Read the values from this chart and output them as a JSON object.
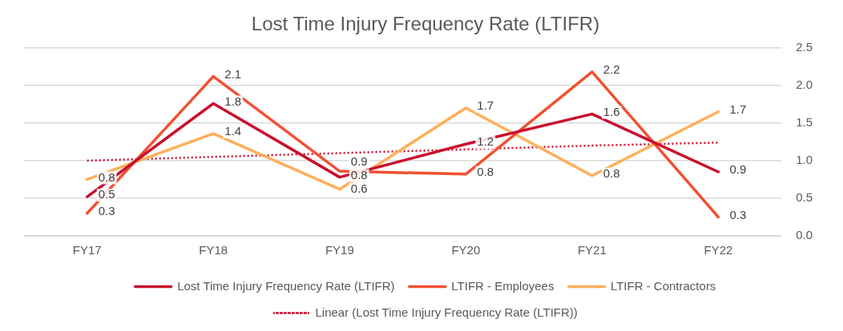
{
  "chart_data": {
    "type": "line",
    "title": "Lost Time Injury Frequency Rate (LTIFR)",
    "categories": [
      "FY17",
      "FY18",
      "FY19",
      "FY20",
      "FY21",
      "FY22"
    ],
    "series": [
      {
        "name": "Lost Time Injury Frequency Rate (LTIFR)",
        "color": "#c8102e",
        "values": [
          0.52,
          1.76,
          0.78,
          1.22,
          1.62,
          0.85
        ],
        "value_labels": [
          "0.5",
          "1.8",
          "0.8",
          "1.2",
          "1.6",
          "0.9"
        ]
      },
      {
        "name": "LTIFR - Employees",
        "color": "#f05132",
        "values": [
          0.3,
          2.12,
          0.86,
          0.82,
          2.18,
          0.25
        ],
        "value_labels": [
          "0.3",
          "2.1",
          "0.9",
          "0.8",
          "2.2",
          "0.3"
        ]
      },
      {
        "name": "LTIFR - Contractors",
        "color": "#ffaf5a",
        "values": [
          0.75,
          1.36,
          0.62,
          1.7,
          0.8,
          1.65
        ],
        "value_labels": [
          "0.8",
          "1.4",
          "0.6",
          "1.7",
          "0.8",
          "1.7"
        ]
      },
      {
        "name": "Linear (Lost Time Injury Frequency Rate (LTIFR))",
        "color": "#c8102e",
        "values": [
          1.0,
          1.05,
          1.1,
          1.15,
          1.2,
          1.24
        ],
        "line_style": "dotted"
      }
    ],
    "ylim": [
      0,
      2.5
    ],
    "yticks": [
      {
        "value": 0,
        "label": "0.0"
      },
      {
        "value": 0.5,
        "label": "0.5"
      },
      {
        "value": 1,
        "label": "1.0"
      },
      {
        "value": 1.5,
        "label": "1.5"
      },
      {
        "value": 2,
        "label": "2.0"
      },
      {
        "value": 2.5,
        "label": "2.5"
      }
    ],
    "grid": "y",
    "legend": "bottom",
    "marker": "none",
    "line_style": "solid"
  }
}
